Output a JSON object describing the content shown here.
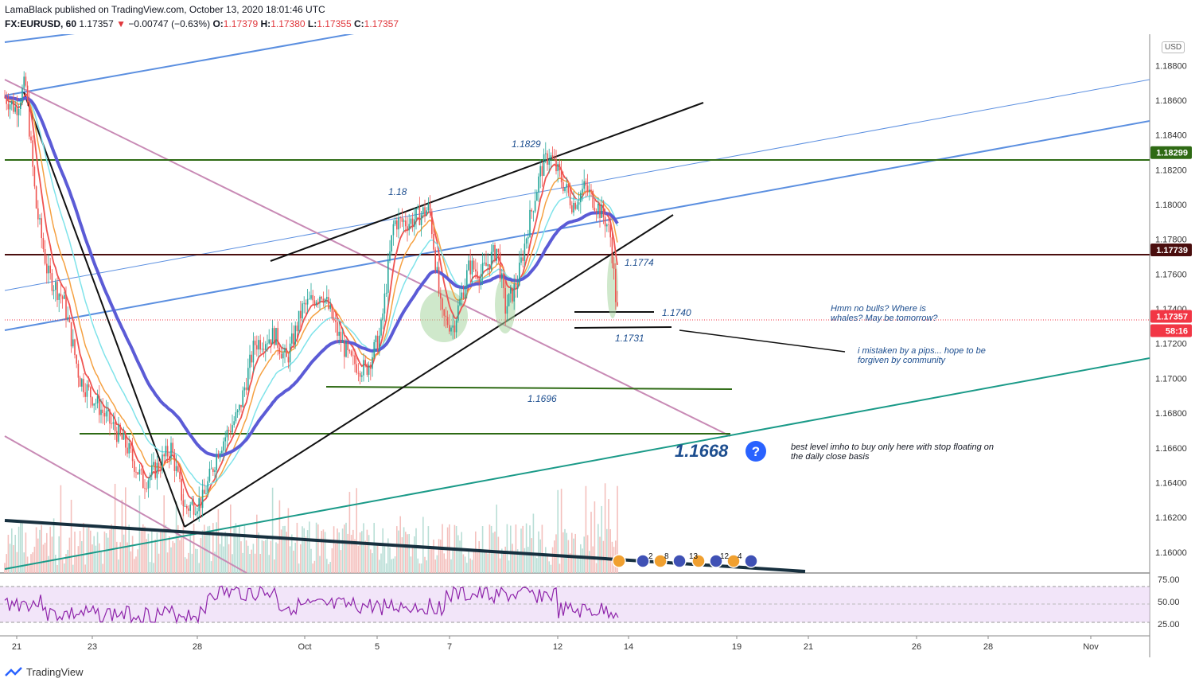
{
  "header": {
    "published": "LamaBlack published on TradingView.com, October 13, 2020 18:01:46 UTC",
    "symbol": "FX:EURUSD, 60",
    "last": "1.17357",
    "change": "−0.00747 (−0.63%)",
    "o_label": "O:",
    "o": "1.17379",
    "h_label": "H:",
    "h": "1.17380",
    "l_label": "L:",
    "l": "1.17355",
    "c_label": "C:",
    "c": "1.17357"
  },
  "currency": "USD",
  "footer": {
    "brand": "TradingView"
  },
  "colors": {
    "up": "#26a69a",
    "down": "#ef5350",
    "green_level": "#2e6a14",
    "dark_level": "#4a0e0e",
    "price_badge": "#f23645",
    "rsi_line": "#8e24aa",
    "ma_blue": "#5b5bd6"
  },
  "price_axis": {
    "ticks": [
      "1.18800",
      "1.18600",
      "1.18400",
      "1.18200",
      "1.18000",
      "1.17800",
      "1.17600",
      "1.17400",
      "1.17200",
      "1.17000",
      "1.16800",
      "1.16600",
      "1.16400",
      "1.16200",
      "1.16000"
    ],
    "badges": [
      {
        "label": "1.18299",
        "price": 1.18299,
        "color": "#2e6a14"
      },
      {
        "label": "1.17739",
        "price": 1.17739,
        "color": "#4a0e0e"
      },
      {
        "label": "1.17357",
        "price": 1.17357,
        "color": "#f23645"
      },
      {
        "label": "58:16",
        "color": "#f23645"
      }
    ]
  },
  "rsi_axis": {
    "ticks": [
      "75.00",
      "50.00",
      "25.00"
    ]
  },
  "time_axis": {
    "ticks": [
      "21",
      "23",
      "28",
      "Oct",
      "5",
      "7",
      "12",
      "14",
      "19",
      "21",
      "26",
      "28",
      "Nov"
    ]
  },
  "annotations": {
    "a1829": "1.1829",
    "a118": "1.18",
    "a1774": "1.1774",
    "a1740": "1.1740",
    "a1731": "1.1731",
    "a1696": "1.1696",
    "a1668": "1.1668",
    "note1_l1": "Hmm no bulls? Where is",
    "note1_l2": "whales? May be tomorrow?",
    "note2_l1": "i mistaken by a pips... hope to be",
    "note2_l2": "forgiven by community",
    "note3_l1": "best level imho to buy only here with stop floating on",
    "note3_l2": "the daily close basis"
  },
  "events": [
    "2",
    "8",
    "13",
    "12",
    "4"
  ],
  "chart_data": {
    "type": "candlestick",
    "symbol": "FX:EURUSD",
    "interval": "60",
    "y_range": [
      1.1588,
      1.1898
    ],
    "levels": [
      {
        "label": "1.18299",
        "price": 1.18299
      },
      {
        "label": "1.17739",
        "price": 1.17739
      },
      {
        "label": "1.1696",
        "price": 1.1696
      },
      {
        "label": "1.1668",
        "price": 1.1668
      }
    ],
    "key_points": [
      {
        "date": "Sep 21",
        "price": 1.187
      },
      {
        "date": "Sep 25",
        "price": 1.1615
      },
      {
        "date": "Sep 28",
        "price": 1.1665
      },
      {
        "date": "Oct 1",
        "price": 1.1755
      },
      {
        "date": "Oct 2",
        "price": 1.17
      },
      {
        "date": "Oct 5",
        "price": 1.1795
      },
      {
        "date": "Oct 6",
        "price": 1.1805
      },
      {
        "date": "Oct 7",
        "price": 1.1725
      },
      {
        "date": "Oct 8",
        "price": 1.1775
      },
      {
        "date": "Oct 9",
        "price": 1.1735
      },
      {
        "date": "Oct 12",
        "price": 1.1829
      },
      {
        "date": "Oct 13",
        "price": 1.1731
      }
    ],
    "rsi_levels": [
      75,
      50,
      25
    ]
  }
}
